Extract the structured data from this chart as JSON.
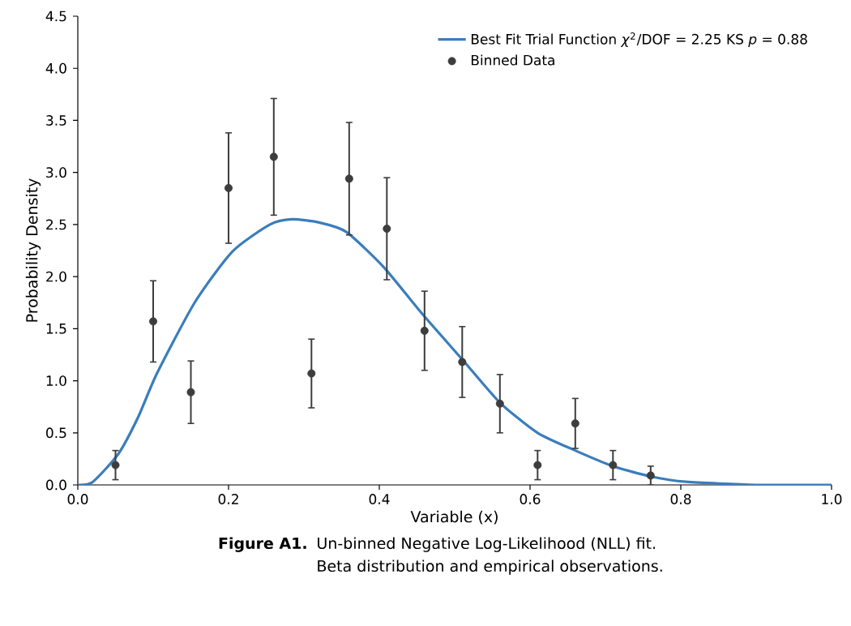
{
  "chart_data": {
    "type": "scatter",
    "xlabel": "Variable (x)",
    "ylabel": "Probability Density",
    "xlim": [
      0,
      1
    ],
    "ylim": [
      0,
      4.5
    ],
    "xticks": [
      {
        "value": 0,
        "label": "0.0"
      },
      {
        "value": 0.2,
        "label": "0.2"
      },
      {
        "value": 0.4,
        "label": "0.4"
      },
      {
        "value": 0.6,
        "label": "0.6"
      },
      {
        "value": 0.8,
        "label": "0.8"
      },
      {
        "value": 1,
        "label": "1.0"
      }
    ],
    "yticks": [
      {
        "value": 0,
        "label": "0.0"
      },
      {
        "value": 0.5,
        "label": "0.5"
      },
      {
        "value": 1,
        "label": "1.0"
      },
      {
        "value": 1.5,
        "label": "1.5"
      },
      {
        "value": 2,
        "label": "2.0"
      },
      {
        "value": 2.5,
        "label": "2.5"
      },
      {
        "value": 3,
        "label": "3.0"
      },
      {
        "value": 3.5,
        "label": "3.5"
      },
      {
        "value": 4,
        "label": "4.0"
      },
      {
        "value": 4.5,
        "label": "4.5"
      }
    ],
    "legend": "top right",
    "series": [
      {
        "name": "Best Fit Trial Function *χ*$^{2}$/DOF = 2.25 KS *p* = 0.88",
        "type": "line",
        "color": "#3a7dbc",
        "marker": "none",
        "x": [
          0,
          0.02,
          0.054,
          0.08,
          0.105,
          0.155,
          0.205,
          0.255,
          0.284,
          0.32,
          0.356,
          0.406,
          0.456,
          0.513,
          0.56,
          0.61,
          0.66,
          0.71,
          0.761,
          0.807,
          0.9,
          1.0
        ],
        "values": [
          0,
          0.03,
          0.3,
          0.65,
          1.07,
          1.75,
          2.24,
          2.5,
          2.55,
          2.52,
          2.43,
          2.09,
          1.65,
          1.18,
          0.79,
          0.5,
          0.33,
          0.18,
          0.08,
          0.03,
          0,
          0
        ]
      },
      {
        "name": "Binned Data",
        "color": "#3d3d3d",
        "marker": "circle",
        "x": [
          0.05,
          0.1,
          0.15,
          0.2,
          0.26,
          0.31,
          0.36,
          0.41,
          0.46,
          0.51,
          0.56,
          0.61,
          0.66,
          0.71,
          0.76
        ],
        "values": [
          0.19,
          1.57,
          0.89,
          2.85,
          3.15,
          1.07,
          2.94,
          2.46,
          1.48,
          1.18,
          0.78,
          0.19,
          0.59,
          0.19,
          0.09
        ],
        "errors": [
          0.14,
          0.39,
          0.3,
          0.53,
          0.56,
          0.33,
          0.54,
          0.49,
          0.38,
          0.34,
          0.28,
          0.14,
          0.24,
          0.14,
          0.09
        ]
      }
    ],
    "annotations": [
      "**Figure A1.**",
      "Un-binned Negative Log-Likelihood (NLL) fit.",
      "Beta distribution and empirical observations."
    ]
  }
}
